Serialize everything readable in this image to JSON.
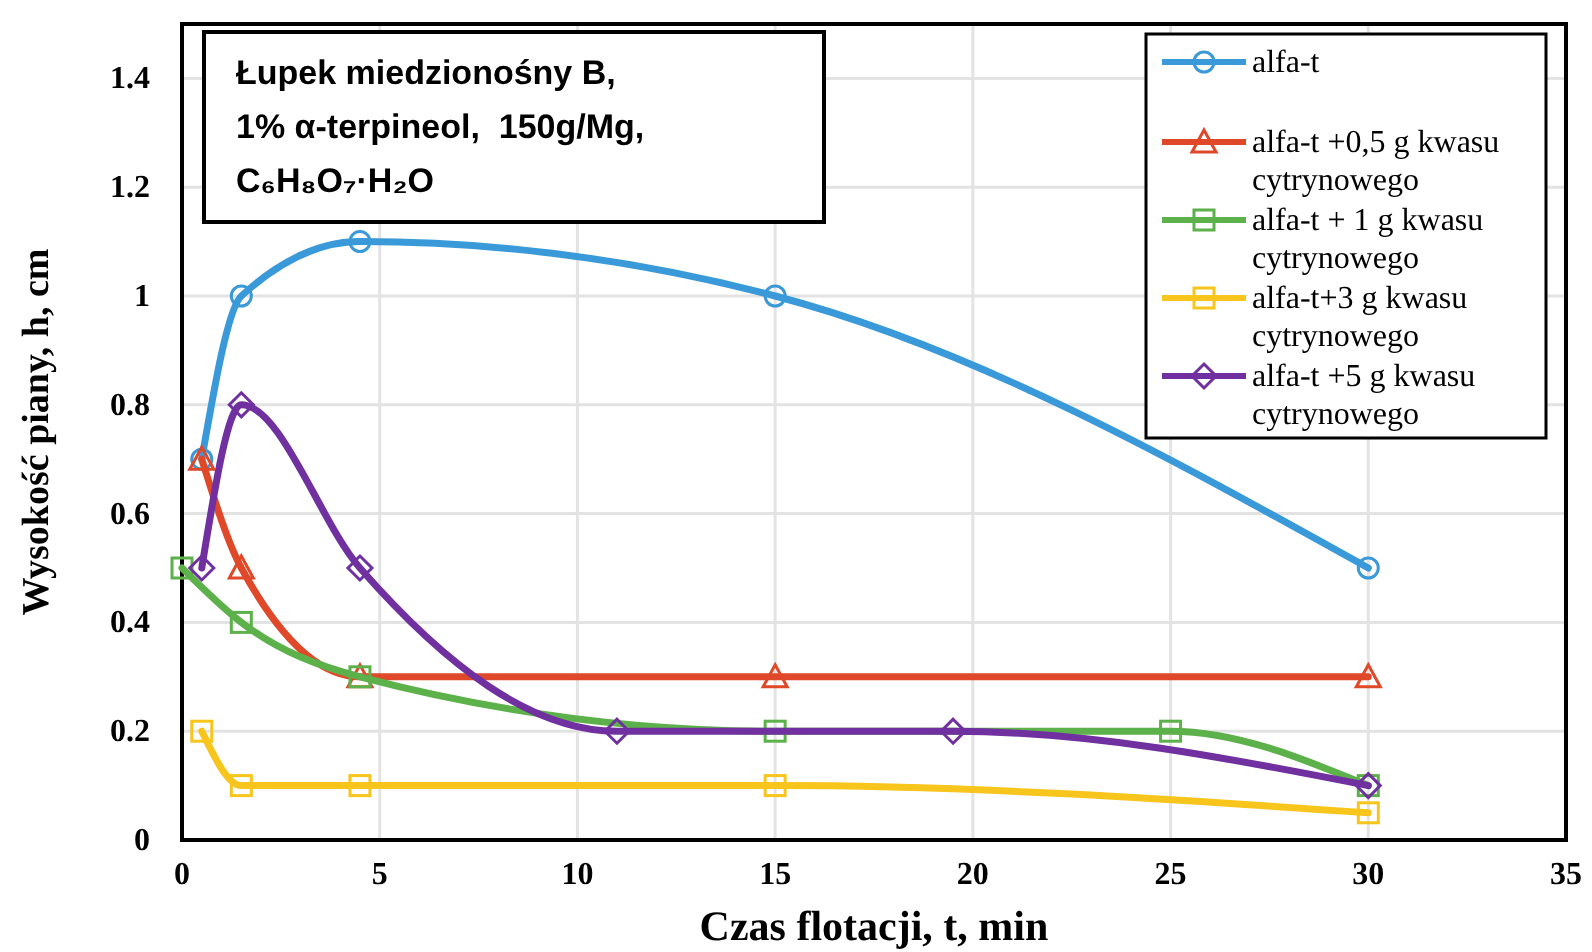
{
  "chart_data": {
    "type": "line",
    "xlabel": "Czas flotacji, t, min",
    "ylabel": "Wysokość piany, h, cm",
    "annotations": [
      "Łupek miedzionośny B,",
      "1% α-terpineol,  150g/Mg,",
      "C₆H₈O₇·H₂O"
    ],
    "xlim": [
      0,
      35
    ],
    "xticks": [
      0,
      5,
      10,
      15,
      20,
      25,
      30,
      35
    ],
    "ylim": [
      0,
      1.5
    ],
    "yticks": [
      0,
      0.2,
      0.4,
      0.6,
      0.8,
      1,
      1.2,
      1.4
    ],
    "grid": true,
    "legend": "top right",
    "line_style": "solid",
    "series": [
      {
        "name": "alfa-t",
        "color": "#3a9ad9",
        "marker": "circle",
        "x": [
          0.5,
          1.5,
          4.5,
          15,
          30
        ],
        "values": [
          0.7,
          1.0,
          1.1,
          1.0,
          0.5
        ]
      },
      {
        "name": "alfa-t +0,5 g kwasu cytrynowego",
        "color": "#e0482a",
        "marker": "triangle",
        "x": [
          0.5,
          1.5,
          4.5,
          15,
          30
        ],
        "values": [
          0.7,
          0.5,
          0.3,
          0.3,
          0.3
        ]
      },
      {
        "name": "alfa-t + 1 g kwasu cytrynowego",
        "color": "#5db14a",
        "marker": "square",
        "x": [
          0,
          0.5,
          1.5,
          4.5,
          15,
          25,
          30
        ],
        "values": [
          0.5,
          null,
          0.4,
          0.3,
          0.2,
          0.2,
          0.1
        ]
      },
      {
        "name": "alfa-t+3 g kwasu cytrynowego",
        "color": "#f7c51c",
        "marker": "square",
        "x": [
          0.5,
          1.5,
          4.5,
          15,
          30
        ],
        "values": [
          0.2,
          0.1,
          0.1,
          0.1,
          0.05
        ]
      },
      {
        "name": "alfa-t +5 g kwasu cytrynowego",
        "color": "#7030a0",
        "marker": "diamond",
        "x": [
          0.5,
          1.5,
          4.5,
          11,
          19.5,
          30
        ],
        "values": [
          0.5,
          0.8,
          0.5,
          0.2,
          0.2,
          0.1
        ]
      }
    ]
  }
}
